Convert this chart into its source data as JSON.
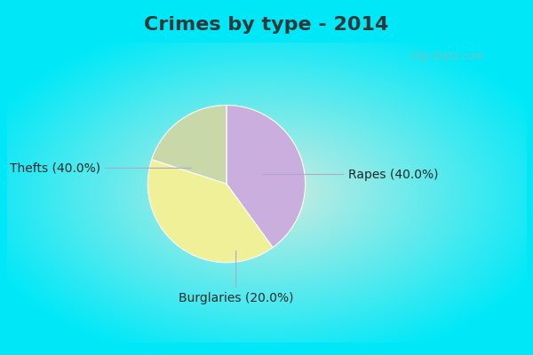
{
  "title": "Crimes by type - 2014",
  "slices": [
    {
      "label": "Rapes",
      "pct": "40.0%",
      "value": 40.0,
      "color": "#c9aede"
    },
    {
      "label": "Thefts",
      "pct": "40.0%",
      "value": 40.0,
      "color": "#f0f098"
    },
    {
      "label": "Burglaries",
      "pct": "20.0%",
      "value": 20.0,
      "color": "#c8d8a8"
    }
  ],
  "background_cyan": "#00e8f8",
  "background_center": "#d0ece0",
  "title_fontsize": 16,
  "title_color": "#2a3a3a",
  "label_fontsize": 10,
  "label_color": "#1a2a2a",
  "watermark": "City-Data.com",
  "watermark_color": "#88bbbb",
  "title_bar_height": 0.115,
  "cyan_border": 0.012,
  "startangle": 90,
  "annotation_color": "#aaaacc"
}
